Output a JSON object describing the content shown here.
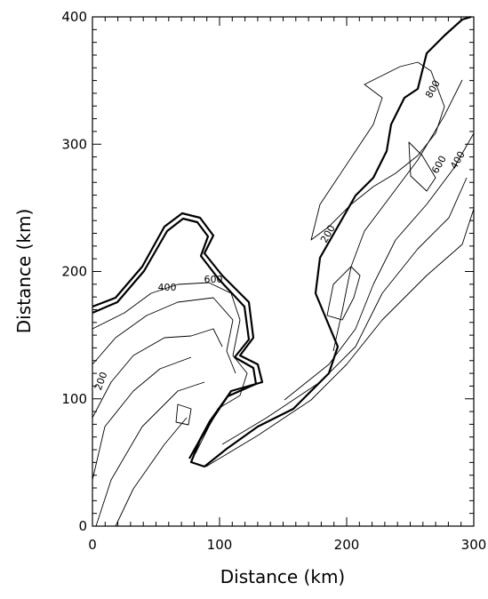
{
  "chart_data": {
    "type": "contour",
    "xlabel": "Distance (km)",
    "ylabel": "Distance (km)",
    "xlim": [
      0,
      300
    ],
    "ylim": [
      0,
      400
    ],
    "xticks": [
      0,
      100,
      200,
      300
    ],
    "yticks": [
      0,
      100,
      200,
      300,
      400
    ],
    "contour_levels": [
      200,
      400,
      600,
      800
    ],
    "color": "#000000"
  }
}
